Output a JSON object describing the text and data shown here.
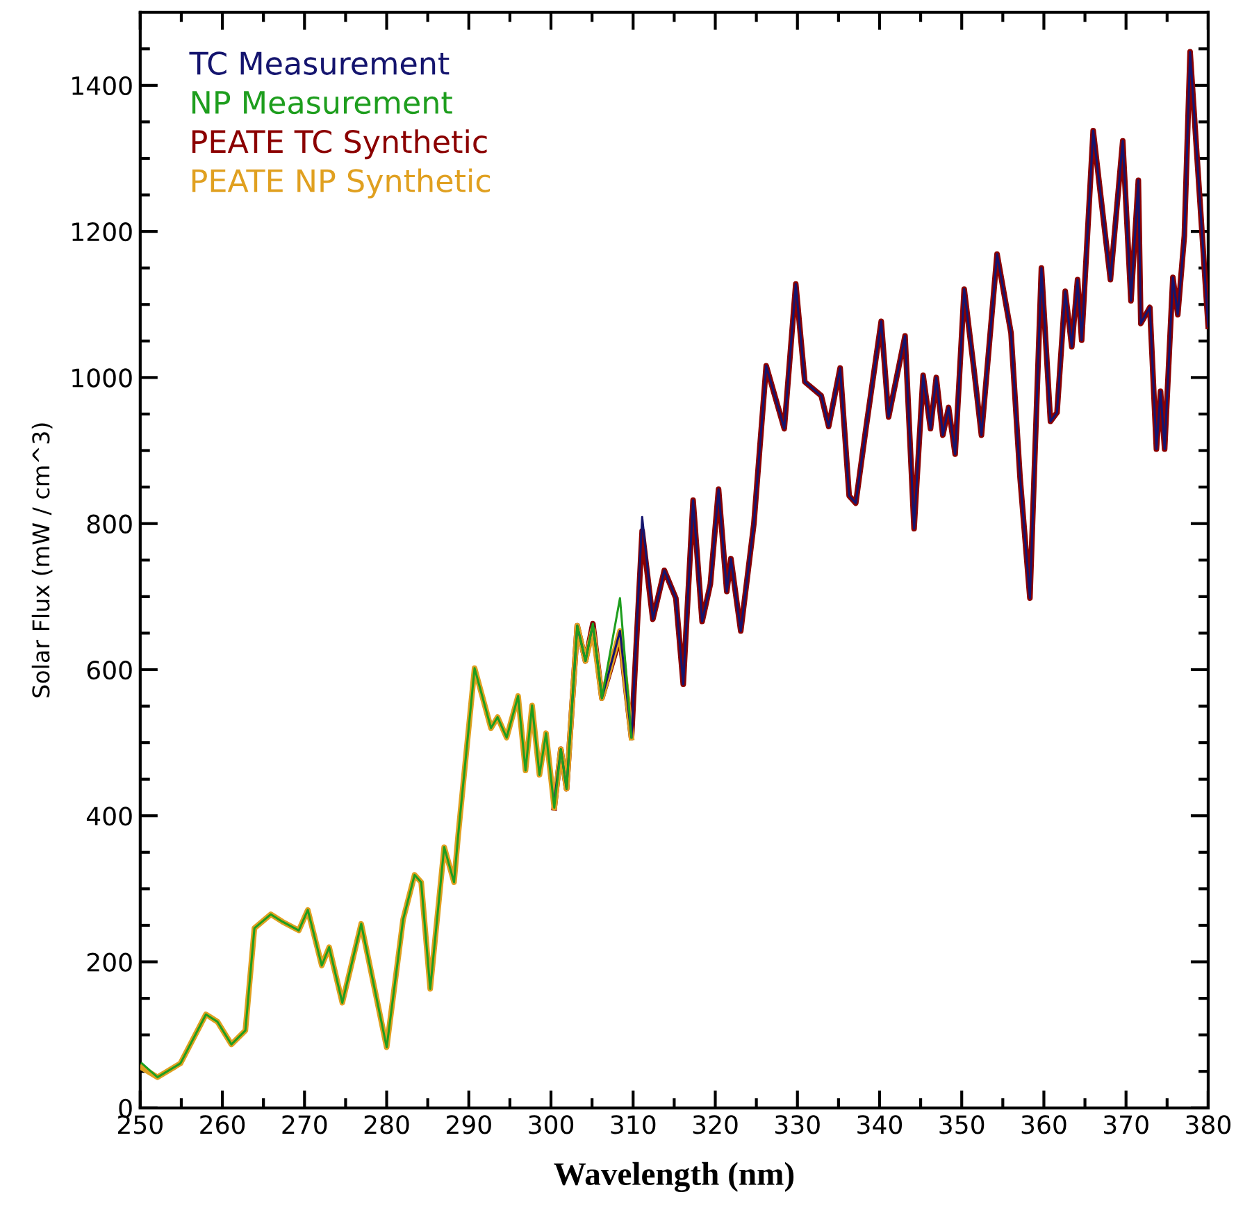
{
  "chart_data": {
    "type": "line",
    "xlabel": "Wavelength (nm)",
    "ylabel": "Solar Flux (mW / cm^3)",
    "xlim": [
      250,
      380
    ],
    "ylim": [
      0,
      1500
    ],
    "xticks": [
      250,
      {
        "value": 255,
        "label": null
      },
      260,
      {
        "value": 265,
        "label": null
      },
      270,
      {
        "value": 275,
        "label": null
      },
      280,
      {
        "value": 285,
        "label": null
      },
      290,
      {
        "value": 295,
        "label": null
      },
      300,
      {
        "value": 305,
        "label": null
      },
      310,
      {
        "value": 315,
        "label": null
      },
      320,
      {
        "value": 325,
        "label": null
      },
      330,
      {
        "value": 335,
        "label": null
      },
      340,
      {
        "value": 345,
        "label": null
      },
      350,
      {
        "value": 355,
        "label": null
      },
      360,
      {
        "value": 365,
        "label": null
      },
      370,
      {
        "value": 375,
        "label": null
      },
      380
    ],
    "yticks": [
      0,
      {
        "value": 50,
        "label": null
      },
      {
        "value": 100,
        "label": null
      },
      {
        "value": 150,
        "label": null
      },
      200,
      {
        "value": 250,
        "label": null
      },
      {
        "value": 300,
        "label": null
      },
      {
        "value": 350,
        "label": null
      },
      400,
      {
        "value": 450,
        "label": null
      },
      {
        "value": 500,
        "label": null
      },
      {
        "value": 550,
        "label": null
      },
      600,
      {
        "value": 650,
        "label": null
      },
      {
        "value": 700,
        "label": null
      },
      {
        "value": 750,
        "label": null
      },
      800,
      {
        "value": 850,
        "label": null
      },
      {
        "value": 900,
        "label": null
      },
      {
        "value": 950,
        "label": null
      },
      1000,
      {
        "value": 1050,
        "label": null
      },
      {
        "value": 1100,
        "label": null
      },
      {
        "value": 1150,
        "label": null
      },
      1200,
      {
        "value": 1250,
        "label": null
      },
      {
        "value": 1300,
        "label": null
      },
      {
        "value": 1350,
        "label": null
      },
      1400,
      {
        "value": 1450,
        "label": null
      }
    ],
    "grid": false,
    "legend": "top left",
    "marker": "none",
    "line_style": "solid",
    "series": [
      {
        "name": "TC Measurement",
        "color": "#14146e",
        "x": [
          300.4,
          301.2,
          301.9,
          303.2,
          304.2,
          305.1,
          306.2,
          308.4,
          309.8,
          311.1,
          312.4,
          313.8,
          315.2,
          316.1,
          317.3,
          318.4,
          319.4,
          320.4,
          321.4,
          321.9,
          323.1,
          324.7,
          326.2,
          328.4,
          329.8,
          330.9,
          332.9,
          333.8,
          335.2,
          336.3,
          337.1,
          338.3,
          340.2,
          341.1,
          343.1,
          344.2,
          345.3,
          346.2,
          346.9,
          347.7,
          348.4,
          349.2,
          350.3,
          351.5,
          352.4,
          354.3,
          356.0,
          357.1,
          358.3,
          359.7,
          360.8,
          361.6,
          362.6,
          363.4,
          364.1,
          364.6,
          366.0,
          368.1,
          369.6,
          370.6,
          371.5,
          371.8,
          372.9,
          373.7,
          374.2,
          374.7,
          375.7,
          376.3,
          377.1,
          377.8,
          380
        ],
        "values": [
          420,
          491,
          437,
          660,
          612,
          663,
          561,
          653,
          507,
          809,
          669,
          736,
          698,
          580,
          832,
          666,
          717,
          847,
          707,
          752,
          653,
          800,
          1016,
          930,
          1128,
          994,
          975,
          933,
          1013,
          838,
          828,
          927,
          1077,
          946,
          1057,
          793,
          1003,
          930,
          1000,
          921,
          959,
          895,
          1121,
          1010,
          921,
          1169,
          1061,
          863,
          698,
          1150,
          940,
          952,
          1118,
          1042,
          1134,
          1051,
          1338,
          1134,
          1324,
          1105,
          1270,
          1074,
          1096,
          902,
          981,
          902,
          1137,
          1086,
          1194,
          1446,
          1070
        ]
      },
      {
        "name": "NP Measurement",
        "color": "#1e9e1e",
        "x": [
          250.2,
          252.1,
          254.9,
          258.0,
          259.4,
          261.1,
          262.8,
          263.9,
          265.9,
          267.3,
          269.3,
          270.4,
          272.1,
          273.0,
          274.6,
          276.9,
          280.0,
          282.0,
          283.4,
          284.2,
          285.3,
          287.0,
          288.2,
          288.7,
          290.7,
          292.7,
          293.5,
          294.6,
          296.0,
          296.9,
          297.7,
          298.6,
          299.4,
          300.4,
          301.2,
          301.9,
          303.2,
          304.2,
          305.1,
          306.2,
          308.4,
          309.8
        ],
        "values": [
          61,
          42,
          61,
          128,
          118,
          87,
          106,
          246,
          265,
          255,
          243,
          271,
          195,
          220,
          144,
          252,
          83,
          258,
          319,
          309,
          163,
          357,
          309,
          373,
          602,
          520,
          535,
          507,
          564,
          462,
          551,
          456,
          513,
          411,
          491,
          437,
          660,
          612,
          663,
          561,
          698,
          507
        ]
      },
      {
        "name": "PEATE TC Synthetic",
        "color": "#8b0000",
        "x": [
          300.4,
          301.2,
          301.9,
          303.2,
          304.2,
          305.1,
          306.2,
          308.4,
          309.8,
          311.1,
          312.4,
          313.8,
          315.2,
          316.1,
          317.3,
          318.4,
          319.4,
          320.4,
          321.4,
          321.9,
          323.1,
          324.7,
          326.2,
          328.4,
          329.8,
          330.9,
          332.9,
          333.8,
          335.2,
          336.3,
          337.1,
          338.3,
          340.2,
          341.1,
          343.1,
          344.2,
          345.3,
          346.2,
          346.9,
          347.7,
          348.4,
          349.2,
          350.3,
          351.5,
          352.4,
          354.3,
          356.0,
          357.1,
          358.3,
          359.7,
          360.8,
          361.6,
          362.6,
          363.4,
          364.1,
          364.6,
          366.0,
          368.1,
          369.6,
          370.6,
          371.5,
          371.8,
          372.9,
          373.7,
          374.2,
          374.7,
          375.7,
          376.3,
          377.1,
          377.8,
          380
        ],
        "values": [
          411,
          491,
          437,
          660,
          612,
          663,
          561,
          645,
          507,
          790,
          669,
          736,
          698,
          580,
          832,
          666,
          717,
          847,
          707,
          752,
          653,
          800,
          1016,
          930,
          1128,
          994,
          975,
          933,
          1013,
          838,
          828,
          927,
          1077,
          946,
          1057,
          793,
          1003,
          930,
          1000,
          921,
          959,
          895,
          1121,
          1010,
          921,
          1169,
          1061,
          863,
          698,
          1150,
          940,
          952,
          1118,
          1042,
          1134,
          1051,
          1338,
          1134,
          1324,
          1105,
          1270,
          1074,
          1096,
          902,
          981,
          902,
          1137,
          1086,
          1194,
          1446,
          1070
        ]
      },
      {
        "name": "PEATE NP Synthetic",
        "color": "#e0a020",
        "x": [
          250.2,
          252.1,
          254.9,
          258.0,
          259.4,
          261.1,
          262.8,
          263.9,
          265.9,
          267.3,
          269.3,
          270.4,
          272.1,
          273.0,
          274.6,
          276.9,
          280.0,
          282.0,
          283.4,
          284.2,
          285.3,
          287.0,
          288.2,
          288.7,
          290.7,
          292.7,
          293.5,
          294.6,
          296.0,
          296.9,
          297.7,
          298.6,
          299.4,
          300.4,
          301.2,
          301.9,
          303.2,
          304.2,
          305.1,
          306.2,
          308.4,
          309.8
        ],
        "values": [
          55,
          42,
          61,
          128,
          118,
          87,
          106,
          246,
          265,
          255,
          243,
          271,
          195,
          220,
          144,
          252,
          83,
          258,
          319,
          309,
          163,
          357,
          309,
          373,
          602,
          520,
          535,
          507,
          564,
          462,
          551,
          456,
          513,
          411,
          491,
          437,
          660,
          612,
          655,
          561,
          653,
          507
        ]
      }
    ]
  }
}
